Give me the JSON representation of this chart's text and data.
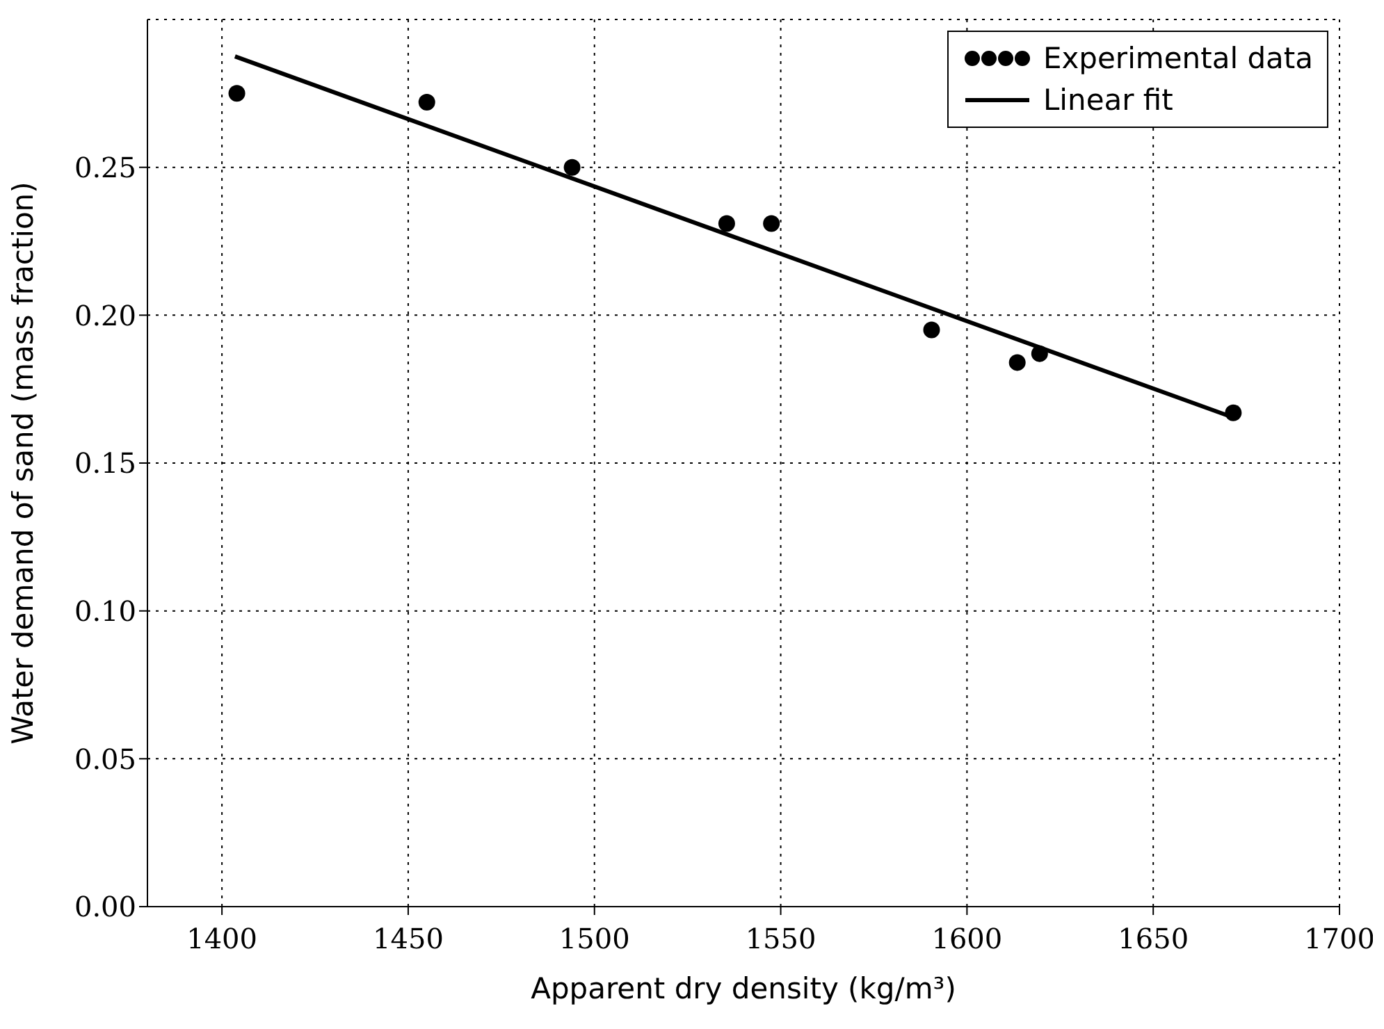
{
  "chart_data": {
    "type": "scatter",
    "xlabel": "Apparent dry density (kg/m³)",
    "ylabel": "Water demand of sand (mass fraction)",
    "xlim": [
      1380,
      1700
    ],
    "xticks": [
      1400,
      1450,
      1500,
      1550,
      1600,
      1650,
      1700
    ],
    "ylim": [
      0,
      0.3
    ],
    "yticks": [
      {
        "value": 0,
        "label": "0.00"
      },
      0.05,
      {
        "value": 0.1,
        "label": "0.10"
      },
      0.15,
      {
        "value": 0.2,
        "label": "0.20"
      },
      0.25
    ],
    "grid": true,
    "legend": "top right",
    "series": [
      {
        "name": "Experimental data",
        "marker": "circle",
        "color": "#000000",
        "x": [
          1404,
          1455,
          1494,
          1535.5,
          1547.5,
          1590.5,
          1613.5,
          1619.5,
          1671.5
        ],
        "values": [
          0.275,
          0.272,
          0.25,
          0.231,
          0.231,
          0.195,
          0.184,
          0.187,
          0.167
        ]
      },
      {
        "name": "Linear fit",
        "type": "line",
        "color": "#000000",
        "line_style": "solid",
        "x": [
          1403.5,
          1671.5
        ],
        "values": [
          0.2875,
          0.1654
        ]
      }
    ]
  }
}
